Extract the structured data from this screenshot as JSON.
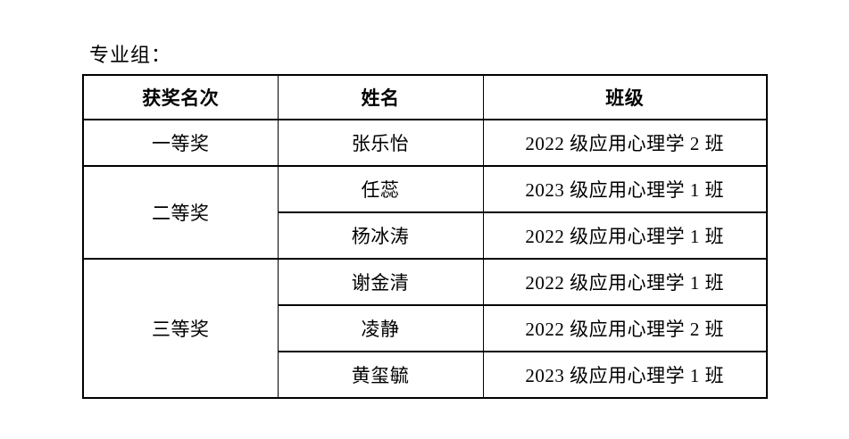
{
  "page": {
    "section_title": "专业组："
  },
  "table": {
    "headers": [
      "获奖名次",
      "姓名",
      "班级"
    ],
    "groups": [
      {
        "award": "一等奖",
        "entries": [
          {
            "name": "张乐怡",
            "class": "2022 级应用心理学 2 班"
          }
        ]
      },
      {
        "award": "二等奖",
        "entries": [
          {
            "name": "任蕊",
            "class": "2023 级应用心理学 1 班"
          },
          {
            "name": "杨冰涛",
            "class": "2022 级应用心理学 1 班"
          }
        ]
      },
      {
        "award": "三等奖",
        "entries": [
          {
            "name": "谢金清",
            "class": "2022 级应用心理学 1 班"
          },
          {
            "name": "凌静",
            "class": "2022 级应用心理学 2 班"
          },
          {
            "name": "黄玺毓",
            "class": "2023 级应用心理学 1 班"
          }
        ]
      }
    ]
  },
  "colors": {
    "text": "#000000",
    "border": "#000000",
    "background": "#ffffff"
  }
}
